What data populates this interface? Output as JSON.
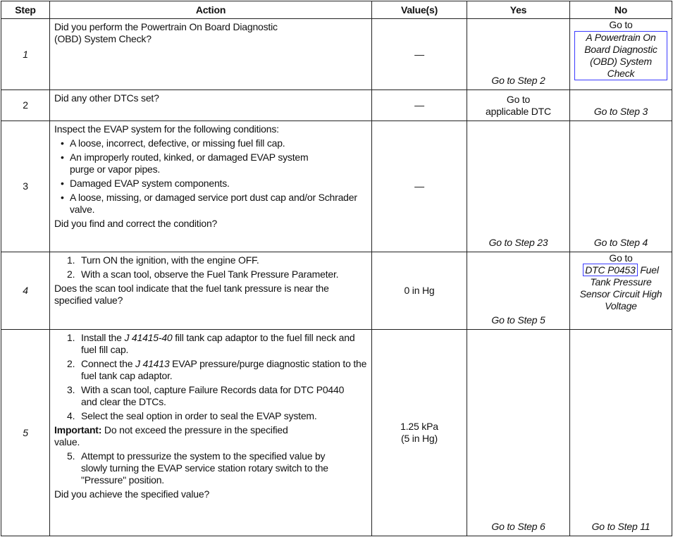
{
  "headers": [
    "Step",
    "Action",
    "Value(s)",
    "Yes",
    "No"
  ],
  "rows": [
    {
      "step": "1",
      "action_q": "Did you perform the Powertrain On Board Diagnostic (OBD) System Check?",
      "value": "—",
      "yes": "Go to Step 2",
      "no_prefix": "Go to",
      "no_link": "A Powertrain On Board Diagnostic (OBD) System Check"
    },
    {
      "step": "2",
      "action_q": "Did any other DTCs set?",
      "value": "—",
      "yes_prefix": "Go to",
      "yes": "applicable DTC",
      "no": "Go to Step 3"
    },
    {
      "step": "3",
      "action_intro": "Inspect the EVAP system for the following conditions:",
      "bullets": [
        "A loose, incorrect, defective, or missing fuel fill cap.",
        "An improperly routed, kinked, or damaged EVAP system purge or vapor pipes.",
        "Damaged EVAP system components.",
        "A loose, missing, or damaged service port dust cap and/or Schrader valve."
      ],
      "action_q": "Did you find and correct the condition?",
      "value": "—",
      "yes": "Go to Step 23",
      "no": "Go to Step 4"
    },
    {
      "step": "4",
      "steps": [
        "Turn ON the ignition, with the engine OFF.",
        "With a scan tool, observe the Fuel Tank Pressure Parameter."
      ],
      "action_q": "Does the scan tool indicate that the fuel tank pressure is near the specified value?",
      "value": "0 in Hg",
      "yes": "Go to Step 5",
      "no_prefix": "Go to",
      "no_link": "DTC P0453",
      "no_rest": "Fuel Tank Pressure Sensor Circuit High Voltage"
    },
    {
      "step": "5",
      "s1a": "Install the",
      "s1tool": "J 41415-40",
      "s1b": "fill tank cap adaptor to the fuel fill neck and fuel fill cap.",
      "s2a": "Connect the",
      "s2tool": "J 41413",
      "s2b": "EVAP pressure/purge diagnostic station to the fuel tank cap adaptor.",
      "s3": "With a scan tool, capture Failure Records data for DTC P0440 and clear the DTCs.",
      "s4": "Select the seal option in order to seal the EVAP system.",
      "important_label": "Important:",
      "important": "Do not exceed the pressure in the specified value.",
      "s5": "Attempt to pressurize the system to the specified value by slowly turning the EVAP service station rotary switch to the \"Pressure\" position.",
      "action_q": "Did you achieve the specified value?",
      "value1": "1.25 kPa",
      "value2": "(5 in Hg)",
      "yes": "Go to Step 6",
      "no": "Go to Step 11"
    }
  ]
}
